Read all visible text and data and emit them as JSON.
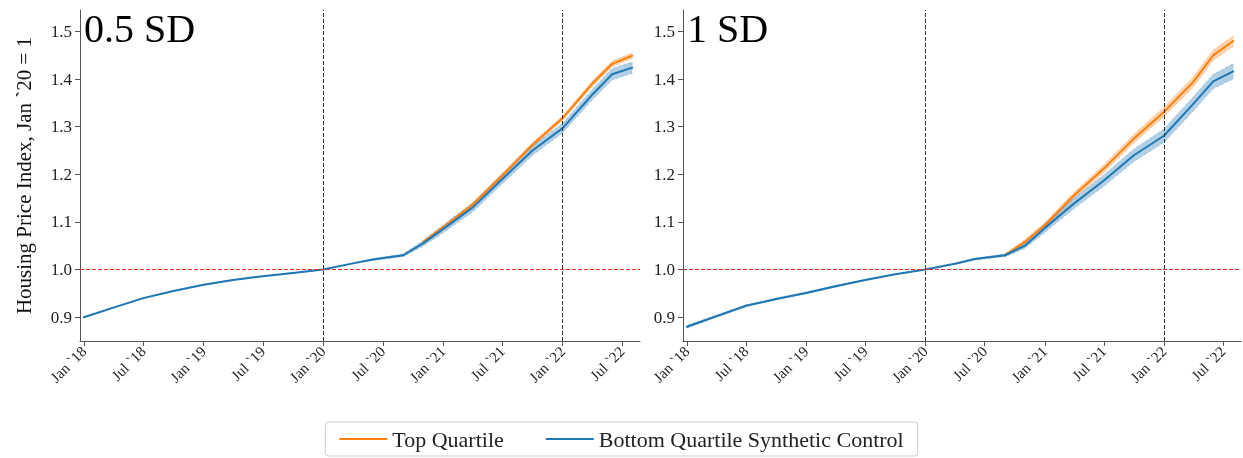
{
  "chart_data": [
    {
      "type": "line",
      "title": "0.5 SD",
      "ylabel": "Housing Price Index, Jan `20 = 1",
      "x": [
        "2018-01",
        "2018-04",
        "2018-07",
        "2018-10",
        "2019-01",
        "2019-04",
        "2019-07",
        "2019-10",
        "2020-01",
        "2020-04",
        "2020-06",
        "2020-09",
        "2020-11",
        "2021-01",
        "2021-04",
        "2021-07",
        "2021-10",
        "2022-01",
        "2022-04",
        "2022-06",
        "2022-08"
      ],
      "series": [
        {
          "name": "Top Quartile",
          "color": "#ff7f0e",
          "values": [
            null,
            null,
            null,
            null,
            null,
            null,
            null,
            null,
            null,
            null,
            null,
            null,
            1.057,
            1.088,
            1.136,
            1.198,
            1.262,
            1.318,
            1.39,
            1.432,
            1.449
          ],
          "lower": [
            null,
            null,
            null,
            null,
            null,
            null,
            null,
            null,
            null,
            null,
            null,
            null,
            1.053,
            1.083,
            1.131,
            1.193,
            1.257,
            1.313,
            1.384,
            1.426,
            1.443
          ],
          "upper": [
            null,
            null,
            null,
            null,
            null,
            null,
            null,
            null,
            null,
            null,
            null,
            null,
            1.061,
            1.093,
            1.141,
            1.203,
            1.267,
            1.323,
            1.396,
            1.438,
            1.455
          ]
        },
        {
          "name": "Bottom Quartile Synthetic Control",
          "color": "#1f77b4",
          "values": [
            0.9,
            0.92,
            0.94,
            0.955,
            0.968,
            0.978,
            0.986,
            0.993,
            1.0,
            1.013,
            1.021,
            1.03,
            1.055,
            1.085,
            1.13,
            1.19,
            1.25,
            1.297,
            1.367,
            1.41,
            1.424
          ],
          "lower": [
            0.899,
            0.919,
            0.939,
            0.954,
            0.967,
            0.977,
            0.985,
            0.992,
            1.0,
            1.012,
            1.019,
            1.027,
            1.049,
            1.077,
            1.121,
            1.18,
            1.24,
            1.287,
            1.356,
            1.398,
            1.412
          ],
          "upper": [
            0.901,
            0.921,
            0.941,
            0.956,
            0.969,
            0.979,
            0.987,
            0.994,
            1.0,
            1.014,
            1.023,
            1.033,
            1.061,
            1.093,
            1.139,
            1.2,
            1.26,
            1.307,
            1.378,
            1.422,
            1.436
          ]
        }
      ],
      "xlim": [
        "2017-12-20",
        "2022-08-25"
      ],
      "xticks": [
        {
          "value": "2018-01",
          "label": "Jan `18"
        },
        {
          "value": "2018-07",
          "label": "Jul `18"
        },
        {
          "value": "2019-01",
          "label": "Jan `19"
        },
        {
          "value": "2019-07",
          "label": "Jul `19"
        },
        {
          "value": "2020-01",
          "label": "Jan `20"
        },
        {
          "value": "2020-07",
          "label": "Jul `20"
        },
        {
          "value": "2021-01",
          "label": "Jan `21"
        },
        {
          "value": "2021-07",
          "label": "Jul `21"
        },
        {
          "value": "2022-01",
          "label": "Jan `22"
        },
        {
          "value": "2022-07",
          "label": "Jul `22"
        }
      ],
      "ylim": [
        0.85,
        1.545
      ],
      "yticks": [
        0.9,
        {
          "value": 1,
          "label": "1.0"
        },
        1.1,
        1.2,
        1.3,
        1.4,
        1.5
      ],
      "ref_lines": [
        {
          "axis": "y",
          "value": 1,
          "color": "#e8302a",
          "line_style": "dashed"
        },
        {
          "axis": "x",
          "value": "2020-01",
          "color": "#333333",
          "line_style": "dashed"
        },
        {
          "axis": "x",
          "value": "2022-01",
          "color": "#333333",
          "line_style": "dashed"
        }
      ],
      "legend": "bottom",
      "grid": false,
      "marker": "none",
      "line_style": "solid"
    },
    {
      "type": "line",
      "title": "1 SD",
      "x": [
        "2018-01",
        "2018-04",
        "2018-07",
        "2018-10",
        "2019-01",
        "2019-04",
        "2019-07",
        "2019-10",
        "2020-01",
        "2020-04",
        "2020-06",
        "2020-09",
        "2020-11",
        "2021-01",
        "2021-04",
        "2021-07",
        "2021-10",
        "2022-01",
        "2022-04",
        "2022-06",
        "2022-08"
      ],
      "series": [
        {
          "color": "#ff7f0e",
          "values": [
            null,
            null,
            null,
            null,
            null,
            null,
            null,
            null,
            null,
            null,
            null,
            1.03,
            1.058,
            1.093,
            1.156,
            1.212,
            1.275,
            1.331,
            1.394,
            1.45,
            1.48
          ],
          "lower": [
            null,
            null,
            null,
            null,
            null,
            null,
            null,
            null,
            null,
            null,
            null,
            1.027,
            1.053,
            1.087,
            1.149,
            1.204,
            1.266,
            1.321,
            1.383,
            1.439,
            1.469
          ],
          "upper": [
            null,
            null,
            null,
            null,
            null,
            null,
            null,
            null,
            null,
            null,
            null,
            1.033,
            1.063,
            1.099,
            1.163,
            1.22,
            1.284,
            1.341,
            1.405,
            1.461,
            1.491
          ]
        },
        {
          "color": "#1f77b4",
          "values": [
            0.88,
            0.902,
            0.924,
            0.938,
            0.951,
            0.965,
            0.978,
            0.99,
            1.0,
            1.012,
            1.022,
            1.03,
            1.05,
            1.087,
            1.139,
            1.187,
            1.24,
            1.281,
            1.348,
            1.395,
            1.416
          ],
          "lower": [
            0.877,
            0.9,
            0.922,
            0.936,
            0.949,
            0.963,
            0.977,
            0.989,
            1.0,
            1.011,
            1.02,
            1.027,
            1.044,
            1.078,
            1.128,
            1.175,
            1.227,
            1.267,
            1.333,
            1.38,
            1.4
          ],
          "upper": [
            0.883,
            0.904,
            0.926,
            0.94,
            0.953,
            0.967,
            0.979,
            0.991,
            1.0,
            1.013,
            1.024,
            1.033,
            1.056,
            1.096,
            1.15,
            1.199,
            1.253,
            1.295,
            1.363,
            1.41,
            1.432
          ]
        }
      ],
      "xlim": [
        "2017-12-20",
        "2022-08-25"
      ],
      "xticks": [
        {
          "value": "2018-01",
          "label": "Jan `18"
        },
        {
          "value": "2018-07",
          "label": "Jul `18"
        },
        {
          "value": "2019-01",
          "label": "Jan `19"
        },
        {
          "value": "2019-07",
          "label": "Jul `19"
        },
        {
          "value": "2020-01",
          "label": "Jan `20"
        },
        {
          "value": "2020-07",
          "label": "Jul `20"
        },
        {
          "value": "2021-01",
          "label": "Jan `21"
        },
        {
          "value": "2021-07",
          "label": "Jul `21"
        },
        {
          "value": "2022-01",
          "label": "Jan `22"
        },
        {
          "value": "2022-07",
          "label": "Jul `22"
        }
      ],
      "ylim": [
        0.85,
        1.545
      ],
      "yticks": [
        0.9,
        {
          "value": 1,
          "label": "1.0"
        },
        1.1,
        1.2,
        1.3,
        1.4,
        1.5
      ],
      "ref_lines": [
        {
          "axis": "y",
          "value": 1,
          "color": "#e8302a",
          "line_style": "dashed"
        },
        {
          "axis": "x",
          "value": "2020-01",
          "color": "#333333",
          "line_style": "dashed"
        },
        {
          "axis": "x",
          "value": "2022-01",
          "color": "#333333",
          "line_style": "dashed"
        }
      ],
      "grid": false,
      "marker": "none",
      "line_style": "solid"
    }
  ]
}
